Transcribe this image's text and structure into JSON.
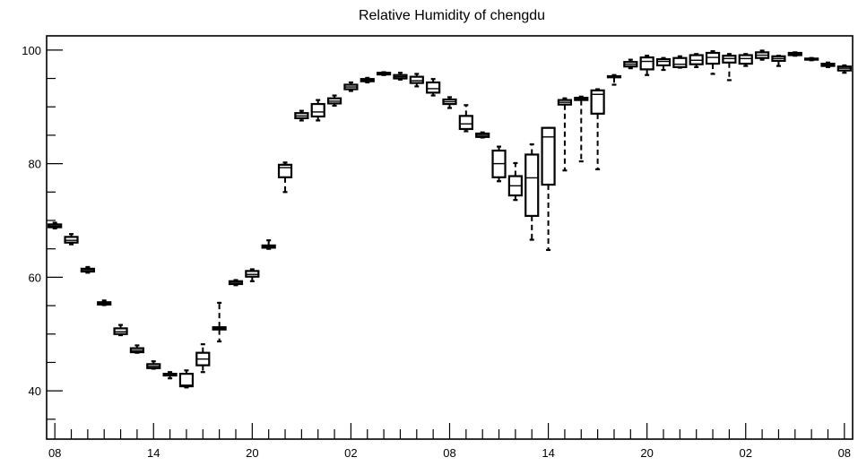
{
  "chart_data": {
    "type": "boxplot",
    "title": "Relative Humidity of chengdu",
    "xlabel": "",
    "ylabel": "",
    "ylim": [
      31.5,
      102.5
    ],
    "y_major_ticks": [
      40,
      60,
      80,
      100
    ],
    "y_minor_step": 5,
    "x_tick_labels": [
      "08",
      "14",
      "20",
      "02",
      "08",
      "14",
      "20",
      "02",
      "08"
    ],
    "x_tick_hours": [
      0,
      6,
      12,
      18,
      24,
      30,
      36,
      42,
      48
    ],
    "x_range_hours": [
      -0.5,
      48.5
    ],
    "grid": false,
    "legend": "none",
    "boxes": [
      {
        "hour": 0,
        "whislo": 68.6,
        "q1": 68.8,
        "med": 69.0,
        "q3": 69.3,
        "whishi": 69.6
      },
      {
        "hour": 1,
        "whislo": 65.8,
        "q1": 66.1,
        "med": 66.5,
        "q3": 67.1,
        "whishi": 67.6
      },
      {
        "hour": 2,
        "whislo": 60.8,
        "q1": 61.0,
        "med": 61.3,
        "q3": 61.5,
        "whishi": 61.8
      },
      {
        "hour": 3,
        "whislo": 55.1,
        "q1": 55.2,
        "med": 55.4,
        "q3": 55.6,
        "whishi": 55.9
      },
      {
        "hour": 4,
        "whislo": 49.8,
        "q1": 50.0,
        "med": 50.4,
        "q3": 51.0,
        "whishi": 51.6
      },
      {
        "hour": 5,
        "whislo": 46.7,
        "q1": 46.8,
        "med": 47.1,
        "q3": 47.5,
        "whishi": 48.0
      },
      {
        "hour": 6,
        "whislo": 43.9,
        "q1": 44.0,
        "med": 44.3,
        "q3": 44.7,
        "whishi": 45.2
      },
      {
        "hour": 7,
        "whislo": 42.2,
        "q1": 42.7,
        "med": 42.9,
        "q3": 43.0,
        "whishi": 43.3
      },
      {
        "hour": 8,
        "whislo": 40.6,
        "q1": 40.8,
        "med": 41.0,
        "q3": 43.0,
        "whishi": 43.6
      },
      {
        "hour": 9,
        "whislo": 43.3,
        "q1": 44.5,
        "med": 45.6,
        "q3": 46.7,
        "whishi": 48.2
      },
      {
        "hour": 10,
        "whislo": 48.7,
        "q1": 50.8,
        "med": 51.0,
        "q3": 51.2,
        "whishi": 55.5
      },
      {
        "hour": 11,
        "whislo": 58.6,
        "q1": 58.8,
        "med": 59.1,
        "q3": 59.3,
        "whishi": 59.5
      },
      {
        "hour": 12,
        "whislo": 59.3,
        "q1": 60.1,
        "med": 60.5,
        "q3": 61.1,
        "whishi": 61.4
      },
      {
        "hour": 13,
        "whislo": 65.0,
        "q1": 65.2,
        "med": 65.4,
        "q3": 65.6,
        "whishi": 66.5
      },
      {
        "hour": 14,
        "whislo": 75.0,
        "q1": 77.6,
        "med": 79.3,
        "q3": 79.8,
        "whishi": 80.2
      },
      {
        "hour": 15,
        "whislo": 87.6,
        "q1": 88.0,
        "med": 88.4,
        "q3": 88.9,
        "whishi": 89.3
      },
      {
        "hour": 16,
        "whislo": 87.6,
        "q1": 88.3,
        "med": 89.1,
        "q3": 90.5,
        "whishi": 91.2
      },
      {
        "hour": 17,
        "whislo": 90.2,
        "q1": 90.6,
        "med": 91.0,
        "q3": 91.5,
        "whishi": 92.0
      },
      {
        "hour": 18,
        "whislo": 92.8,
        "q1": 93.1,
        "med": 93.5,
        "q3": 93.9,
        "whishi": 94.3
      },
      {
        "hour": 19,
        "whislo": 94.3,
        "q1": 94.5,
        "med": 94.7,
        "q3": 94.9,
        "whishi": 95.1
      },
      {
        "hour": 20,
        "whislo": 95.6,
        "q1": 95.7,
        "med": 95.9,
        "q3": 96.0,
        "whishi": 96.1
      },
      {
        "hour": 21,
        "whislo": 94.8,
        "q1": 95.0,
        "med": 95.3,
        "q3": 95.6,
        "whishi": 96.0
      },
      {
        "hour": 22,
        "whislo": 93.6,
        "q1": 94.2,
        "med": 94.6,
        "q3": 95.3,
        "whishi": 95.8
      },
      {
        "hour": 23,
        "whislo": 92.0,
        "q1": 92.5,
        "med": 93.2,
        "q3": 94.3,
        "whishi": 94.9
      },
      {
        "hour": 24,
        "whislo": 89.8,
        "q1": 90.5,
        "med": 90.9,
        "q3": 91.3,
        "whishi": 91.7
      },
      {
        "hour": 25,
        "whislo": 85.7,
        "q1": 86.1,
        "med": 87.0,
        "q3": 88.4,
        "whishi": 90.3
      },
      {
        "hour": 26,
        "whislo": 84.6,
        "q1": 84.7,
        "med": 85.0,
        "q3": 85.3,
        "whishi": 85.5
      },
      {
        "hour": 27,
        "whislo": 76.9,
        "q1": 77.6,
        "med": 80.0,
        "q3": 82.3,
        "whishi": 83.0
      },
      {
        "hour": 28,
        "whislo": 73.6,
        "q1": 74.4,
        "med": 76.1,
        "q3": 77.8,
        "whishi": 80.1
      },
      {
        "hour": 29,
        "whislo": 66.6,
        "q1": 70.8,
        "med": 77.5,
        "q3": 81.6,
        "whishi": 83.4
      },
      {
        "hour": 30,
        "whislo": 64.8,
        "q1": 76.3,
        "med": 84.7,
        "q3": 86.3,
        "whishi": 86.3
      },
      {
        "hour": 31,
        "whislo": 78.8,
        "q1": 90.4,
        "med": 90.8,
        "q3": 91.2,
        "whishi": 91.5
      },
      {
        "hour": 32,
        "whislo": 80.4,
        "q1": 91.2,
        "med": 91.4,
        "q3": 91.6,
        "whishi": 91.8
      },
      {
        "hour": 33,
        "whislo": 79.0,
        "q1": 88.8,
        "med": 92.2,
        "q3": 92.9,
        "whishi": 93.1
      },
      {
        "hour": 34,
        "whislo": 93.9,
        "q1": 95.2,
        "med": 95.3,
        "q3": 95.4,
        "whishi": 95.6
      },
      {
        "hour": 35,
        "whislo": 96.8,
        "q1": 97.1,
        "med": 97.5,
        "q3": 97.9,
        "whishi": 98.3
      },
      {
        "hour": 36,
        "whislo": 95.6,
        "q1": 96.6,
        "med": 98.0,
        "q3": 98.7,
        "whishi": 99.0
      },
      {
        "hour": 37,
        "whislo": 96.5,
        "q1": 97.3,
        "med": 98.0,
        "q3": 98.4,
        "whishi": 98.6
      },
      {
        "hour": 38,
        "whislo": 96.9,
        "q1": 97.0,
        "med": 97.5,
        "q3": 98.6,
        "whishi": 98.9
      },
      {
        "hour": 39,
        "whislo": 97.0,
        "q1": 97.5,
        "med": 98.2,
        "q3": 99.1,
        "whishi": 99.3
      },
      {
        "hour": 40,
        "whislo": 95.8,
        "q1": 97.6,
        "med": 98.7,
        "q3": 99.5,
        "whishi": 99.8
      },
      {
        "hour": 41,
        "whislo": 94.7,
        "q1": 97.8,
        "med": 98.5,
        "q3": 99.0,
        "whishi": 99.3
      },
      {
        "hour": 42,
        "whislo": 97.2,
        "q1": 97.6,
        "med": 98.5,
        "q3": 99.1,
        "whishi": 99.3
      },
      {
        "hour": 43,
        "whislo": 98.3,
        "q1": 98.6,
        "med": 99.1,
        "q3": 99.6,
        "whishi": 99.9
      },
      {
        "hour": 44,
        "whislo": 97.2,
        "q1": 98.1,
        "med": 98.5,
        "q3": 98.9,
        "whishi": 99.0
      },
      {
        "hour": 45,
        "whislo": 99.0,
        "q1": 99.1,
        "med": 99.3,
        "q3": 99.5,
        "whishi": 99.6
      },
      {
        "hour": 46,
        "whislo": 98.2,
        "q1": 98.3,
        "med": 98.4,
        "q3": 98.5,
        "whishi": 98.6
      },
      {
        "hour": 47,
        "whislo": 97.0,
        "q1": 97.2,
        "med": 97.4,
        "q3": 97.6,
        "whishi": 97.8
      },
      {
        "hour": 48,
        "whislo": 96.0,
        "q1": 96.4,
        "med": 96.8,
        "q3": 97.1,
        "whishi": 97.3
      }
    ]
  }
}
